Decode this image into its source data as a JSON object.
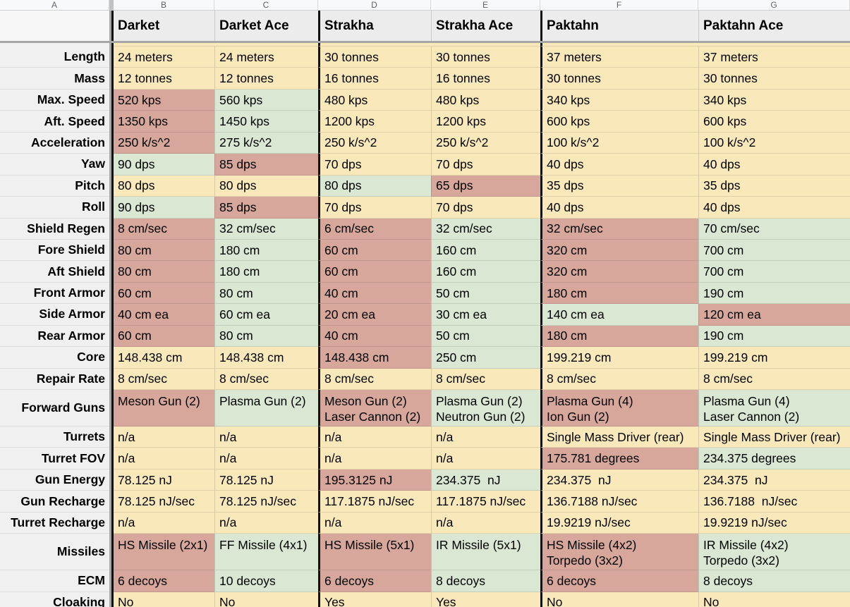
{
  "sheet": {
    "column_letters": [
      "A",
      "B",
      "C",
      "D",
      "E",
      "F",
      "G"
    ],
    "ships": [
      "Darket",
      "Darket Ace",
      "Strakha",
      "Strakha Ace",
      "Paktahn",
      "Paktahn Ace"
    ],
    "colors": {
      "neutral_fill": "#f8e8ba",
      "better_fill": "#d9e7d3",
      "worse_fill": "#d7a79c",
      "ship_header_fill": "#ececec",
      "label_column_fill": "#f0f0f0",
      "frozen_divider": "#a6a6a6",
      "thick_border": "#111111"
    },
    "table": {
      "rows": [
        {
          "label": "Length",
          "cells": [
            {
              "t": "24 meters",
              "c": "n"
            },
            {
              "t": "24 meters",
              "c": "n"
            },
            {
              "t": "30 tonnes",
              "c": "n"
            },
            {
              "t": "30 tonnes",
              "c": "n"
            },
            {
              "t": "37 meters",
              "c": "n"
            },
            {
              "t": "37 meters",
              "c": "n"
            }
          ]
        },
        {
          "label": "Mass",
          "cells": [
            {
              "t": "12 tonnes",
              "c": "n"
            },
            {
              "t": "12 tonnes",
              "c": "n"
            },
            {
              "t": "16 tonnes",
              "c": "n"
            },
            {
              "t": "16 tonnes",
              "c": "n"
            },
            {
              "t": "30 tonnes",
              "c": "n"
            },
            {
              "t": "30 tonnes",
              "c": "n"
            }
          ]
        },
        {
          "label": "Max. Speed",
          "cells": [
            {
              "t": "520 kps",
              "c": "b"
            },
            {
              "t": "560 kps",
              "c": "g"
            },
            {
              "t": "480 kps",
              "c": "n"
            },
            {
              "t": "480 kps",
              "c": "n"
            },
            {
              "t": "340 kps",
              "c": "n"
            },
            {
              "t": "340 kps",
              "c": "n"
            }
          ]
        },
        {
          "label": "Aft. Speed",
          "cells": [
            {
              "t": "1350 kps",
              "c": "b"
            },
            {
              "t": "1450 kps",
              "c": "g"
            },
            {
              "t": "1200 kps",
              "c": "n"
            },
            {
              "t": "1200 kps",
              "c": "n"
            },
            {
              "t": "600 kps",
              "c": "n"
            },
            {
              "t": "600 kps",
              "c": "n"
            }
          ]
        },
        {
          "label": "Acceleration",
          "cells": [
            {
              "t": "250 k/s^2",
              "c": "b"
            },
            {
              "t": "275 k/s^2",
              "c": "g"
            },
            {
              "t": "250 k/s^2",
              "c": "n"
            },
            {
              "t": "250 k/s^2",
              "c": "n"
            },
            {
              "t": "100 k/s^2",
              "c": "n"
            },
            {
              "t": "100 k/s^2",
              "c": "n"
            }
          ]
        },
        {
          "label": "Yaw",
          "cells": [
            {
              "t": "90 dps",
              "c": "g"
            },
            {
              "t": "85 dps",
              "c": "b"
            },
            {
              "t": "70 dps",
              "c": "n"
            },
            {
              "t": "70 dps",
              "c": "n"
            },
            {
              "t": "40 dps",
              "c": "n"
            },
            {
              "t": "40 dps",
              "c": "n"
            }
          ]
        },
        {
          "label": "Pitch",
          "cells": [
            {
              "t": "80 dps",
              "c": "n"
            },
            {
              "t": "80 dps",
              "c": "n"
            },
            {
              "t": "80 dps",
              "c": "g"
            },
            {
              "t": "65 dps",
              "c": "b"
            },
            {
              "t": "35 dps",
              "c": "n"
            },
            {
              "t": "35 dps",
              "c": "n"
            }
          ]
        },
        {
          "label": "Roll",
          "cells": [
            {
              "t": "90 dps",
              "c": "g"
            },
            {
              "t": "85 dps",
              "c": "b"
            },
            {
              "t": "70 dps",
              "c": "n"
            },
            {
              "t": "70 dps",
              "c": "n"
            },
            {
              "t": "40 dps",
              "c": "n"
            },
            {
              "t": "40 dps",
              "c": "n"
            }
          ]
        },
        {
          "label": "Shield Regen",
          "cells": [
            {
              "t": "8 cm/sec",
              "c": "b"
            },
            {
              "t": "32 cm/sec",
              "c": "g"
            },
            {
              "t": "6 cm/sec",
              "c": "b"
            },
            {
              "t": "32 cm/sec",
              "c": "g"
            },
            {
              "t": "32 cm/sec",
              "c": "b"
            },
            {
              "t": "70 cm/sec",
              "c": "g"
            }
          ]
        },
        {
          "label": "Fore Shield",
          "cells": [
            {
              "t": "80 cm",
              "c": "b"
            },
            {
              "t": "180 cm",
              "c": "g"
            },
            {
              "t": "60 cm",
              "c": "b"
            },
            {
              "t": "160 cm",
              "c": "g"
            },
            {
              "t": "320 cm",
              "c": "b"
            },
            {
              "t": "700 cm",
              "c": "g"
            }
          ]
        },
        {
          "label": "Aft Shield",
          "cells": [
            {
              "t": "80 cm",
              "c": "b"
            },
            {
              "t": "180 cm",
              "c": "g"
            },
            {
              "t": "60 cm",
              "c": "b"
            },
            {
              "t": "160 cm",
              "c": "g"
            },
            {
              "t": "320 cm",
              "c": "b"
            },
            {
              "t": "700 cm",
              "c": "g"
            }
          ]
        },
        {
          "label": "Front Armor",
          "cells": [
            {
              "t": "60 cm",
              "c": "b"
            },
            {
              "t": "80 cm",
              "c": "g"
            },
            {
              "t": "40 cm",
              "c": "b"
            },
            {
              "t": "50 cm",
              "c": "g"
            },
            {
              "t": "180 cm",
              "c": "b"
            },
            {
              "t": "190 cm",
              "c": "g"
            }
          ]
        },
        {
          "label": "Side Armor",
          "cells": [
            {
              "t": "40 cm ea",
              "c": "b"
            },
            {
              "t": "60 cm ea",
              "c": "g"
            },
            {
              "t": "20 cm ea",
              "c": "b"
            },
            {
              "t": "30 cm ea",
              "c": "g"
            },
            {
              "t": "140 cm ea",
              "c": "g"
            },
            {
              "t": "120 cm ea",
              "c": "b"
            }
          ]
        },
        {
          "label": "Rear Armor",
          "cells": [
            {
              "t": "60 cm",
              "c": "b"
            },
            {
              "t": "80 cm",
              "c": "g"
            },
            {
              "t": "40 cm",
              "c": "b"
            },
            {
              "t": "50 cm",
              "c": "g"
            },
            {
              "t": "180 cm",
              "c": "b"
            },
            {
              "t": "190 cm",
              "c": "g"
            }
          ]
        },
        {
          "label": "Core",
          "cells": [
            {
              "t": "148.438 cm",
              "c": "n"
            },
            {
              "t": "148.438 cm",
              "c": "n"
            },
            {
              "t": "148.438 cm",
              "c": "b"
            },
            {
              "t": "250 cm",
              "c": "g"
            },
            {
              "t": "199.219 cm",
              "c": "n"
            },
            {
              "t": "199.219 cm",
              "c": "n"
            }
          ]
        },
        {
          "label": "Repair Rate",
          "cells": [
            {
              "t": "8 cm/sec",
              "c": "n"
            },
            {
              "t": "8 cm/sec",
              "c": "n"
            },
            {
              "t": "8 cm/sec",
              "c": "n"
            },
            {
              "t": "8 cm/sec",
              "c": "n"
            },
            {
              "t": "8 cm/sec",
              "c": "n"
            },
            {
              "t": "8 cm/sec",
              "c": "n"
            }
          ]
        },
        {
          "label": "Forward Guns",
          "cells": [
            {
              "t": "Meson Gun (2)",
              "c": "b"
            },
            {
              "t": "Plasma Gun (2)",
              "c": "g"
            },
            {
              "t": "Meson Gun (2)\nLaser Cannon (2)",
              "c": "b"
            },
            {
              "t": "Plasma Gun (2)\nNeutron Gun (2)",
              "c": "g"
            },
            {
              "t": "Plasma Gun (4)\nIon Gun (2)",
              "c": "b"
            },
            {
              "t": "Plasma Gun (4)\nLaser Cannon (2)",
              "c": "g"
            }
          ]
        },
        {
          "label": "Turrets",
          "cells": [
            {
              "t": "n/a",
              "c": "n"
            },
            {
              "t": "n/a",
              "c": "n"
            },
            {
              "t": "n/a",
              "c": "n"
            },
            {
              "t": "n/a",
              "c": "n"
            },
            {
              "t": "Single Mass Driver (rear)",
              "c": "n"
            },
            {
              "t": "Single Mass Driver (rear)",
              "c": "n"
            }
          ]
        },
        {
          "label": "Turret FOV",
          "cells": [
            {
              "t": "n/a",
              "c": "n"
            },
            {
              "t": "n/a",
              "c": "n"
            },
            {
              "t": "n/a",
              "c": "n"
            },
            {
              "t": "n/a",
              "c": "n"
            },
            {
              "t": "175.781 degrees",
              "c": "b"
            },
            {
              "t": "234.375 degrees",
              "c": "g"
            }
          ]
        },
        {
          "label": "Gun Energy",
          "cells": [
            {
              "t": "78.125 nJ",
              "c": "n"
            },
            {
              "t": "78.125 nJ",
              "c": "n"
            },
            {
              "t": "195.3125 nJ",
              "c": "b"
            },
            {
              "t": "234.375  nJ",
              "c": "g"
            },
            {
              "t": "234.375  nJ",
              "c": "n"
            },
            {
              "t": "234.375  nJ",
              "c": "n"
            }
          ]
        },
        {
          "label": "Gun Recharge",
          "cells": [
            {
              "t": "78.125 nJ/sec",
              "c": "n"
            },
            {
              "t": "78.125 nJ/sec",
              "c": "n"
            },
            {
              "t": "117.1875 nJ/sec",
              "c": "n"
            },
            {
              "t": "117.1875 nJ/sec",
              "c": "n"
            },
            {
              "t": "136.7188 nJ/sec",
              "c": "n"
            },
            {
              "t": "136.7188  nJ/sec",
              "c": "n"
            }
          ]
        },
        {
          "label": "Turret Recharge",
          "cells": [
            {
              "t": "n/a",
              "c": "n"
            },
            {
              "t": "n/a",
              "c": "n"
            },
            {
              "t": "n/a",
              "c": "n"
            },
            {
              "t": "n/a",
              "c": "n"
            },
            {
              "t": "19.9219 nJ/sec",
              "c": "n"
            },
            {
              "t": "19.9219 nJ/sec",
              "c": "n"
            }
          ]
        },
        {
          "label": "Missiles",
          "cells": [
            {
              "t": "HS Missile (2x1)",
              "c": "b"
            },
            {
              "t": "FF Missile (4x1)",
              "c": "g"
            },
            {
              "t": "HS Missile (5x1)",
              "c": "b"
            },
            {
              "t": "IR Missile (5x1)",
              "c": "g"
            },
            {
              "t": "HS Missile (4x2)\nTorpedo (3x2)",
              "c": "b"
            },
            {
              "t": "IR Missile (4x2)\nTorpedo (3x2)",
              "c": "g"
            }
          ]
        },
        {
          "label": "ECM",
          "cells": [
            {
              "t": "6 decoys",
              "c": "b"
            },
            {
              "t": "10 decoys",
              "c": "g"
            },
            {
              "t": "6 decoys",
              "c": "b"
            },
            {
              "t": "8 decoys",
              "c": "g"
            },
            {
              "t": "6 decoys",
              "c": "b"
            },
            {
              "t": "8 decoys",
              "c": "g"
            }
          ]
        },
        {
          "label": "Cloaking",
          "cells": [
            {
              "t": "No",
              "c": "n"
            },
            {
              "t": "No",
              "c": "n"
            },
            {
              "t": "Yes",
              "c": "n"
            },
            {
              "t": "Yes",
              "c": "n"
            },
            {
              "t": "No",
              "c": "n"
            },
            {
              "t": "No",
              "c": "n"
            }
          ]
        }
      ]
    }
  }
}
